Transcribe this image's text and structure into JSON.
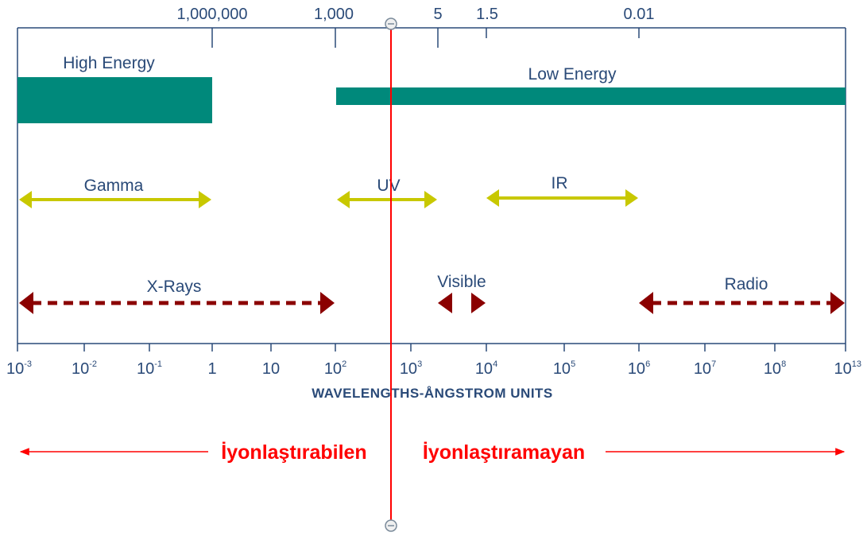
{
  "top_scale_ticks": [
    "1,000,000",
    "1,000",
    "5",
    "1.5",
    "0.01"
  ],
  "energy_bands": {
    "high": "High Energy",
    "low": "Low Energy",
    "color": "#00897b"
  },
  "regions": {
    "gamma": "Gamma",
    "uv": "UV",
    "ir": "IR",
    "xrays": "X-Rays",
    "visible": "Visible",
    "radio": "Radio",
    "solid_arrow_color": "#c8c800",
    "dashed_arrow_color": "#8b0000"
  },
  "bottom_axis": {
    "ticks": [
      {
        "base": "10",
        "exp": "-3"
      },
      {
        "base": "10",
        "exp": "-2"
      },
      {
        "base": "10",
        "exp": "-1"
      },
      {
        "base": "1",
        "exp": ""
      },
      {
        "base": "10",
        "exp": ""
      },
      {
        "base": "10",
        "exp": "2"
      },
      {
        "base": "10",
        "exp": "3"
      },
      {
        "base": "10",
        "exp": "4"
      },
      {
        "base": "10",
        "exp": "5"
      },
      {
        "base": "10",
        "exp": "6"
      },
      {
        "base": "10",
        "exp": "7"
      },
      {
        "base": "10",
        "exp": "8"
      },
      {
        "base": "10",
        "exp": "13"
      }
    ],
    "title": "WAVELENGTHS-ÅNGSTROM UNITS"
  },
  "ionizing": {
    "left": "İyonlaştırabilen",
    "right": "İyonlaştıramayan",
    "color": "#ff0000"
  }
}
